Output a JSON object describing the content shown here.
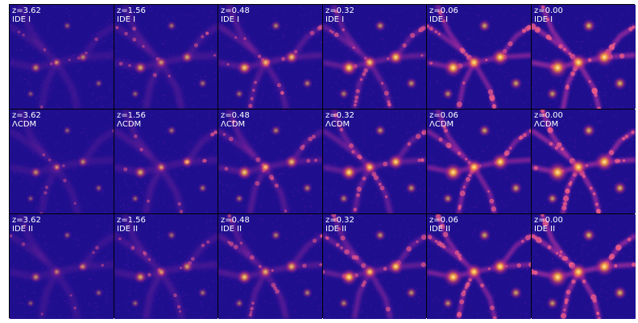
{
  "figure": {
    "colormap": [
      "#1b0c8c",
      "#3a0a9c",
      "#7a0aa6",
      "#b82b8f",
      "#e25c5c",
      "#f8a13a",
      "#fde26a"
    ],
    "background_color": "#1f0f8f",
    "rows": [
      {
        "model": "IDE I",
        "panels": [
          {
            "z": "z=3.62"
          },
          {
            "z": "z=1.56"
          },
          {
            "z": "z=0.48"
          },
          {
            "z": "z=0.32"
          },
          {
            "z": "z=0.06"
          },
          {
            "z": "z=0.00"
          }
        ]
      },
      {
        "model": "ΛCDM",
        "panels": [
          {
            "z": "z=3.62"
          },
          {
            "z": "z=1.56"
          },
          {
            "z": "z=0.48"
          },
          {
            "z": "z=0.32"
          },
          {
            "z": "z=0.06"
          },
          {
            "z": "z=0.00"
          }
        ]
      },
      {
        "model": "IDE II",
        "panels": [
          {
            "z": "z=3.62"
          },
          {
            "z": "z=1.56"
          },
          {
            "z": "z=0.48"
          },
          {
            "z": "z=0.32"
          },
          {
            "z": "z=0.06"
          },
          {
            "z": "z=0.00"
          }
        ]
      }
    ]
  }
}
